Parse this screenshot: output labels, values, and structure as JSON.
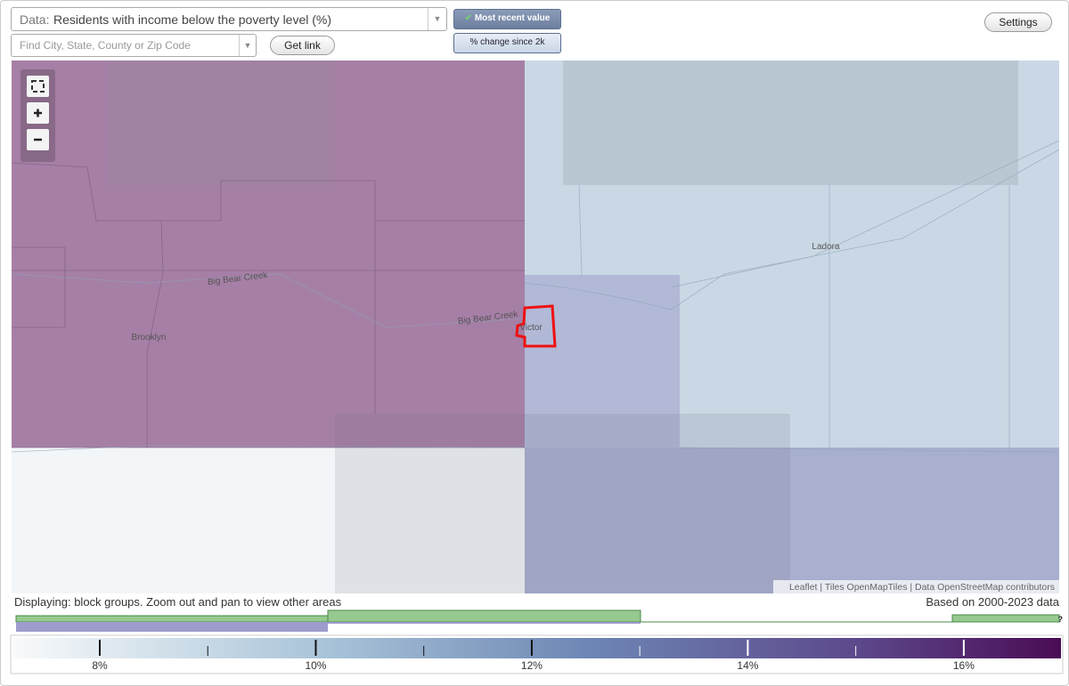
{
  "toolbar": {
    "data_label": "Data:",
    "data_value": "Residents with income below the poverty level (%)",
    "search_placeholder": "Find City, State, County or Zip Code",
    "get_link": "Get link",
    "most_recent": "Most recent value",
    "change": "% change since 2k",
    "settings": "Settings"
  },
  "map": {
    "labels": [
      "Brooklyn",
      "Big Bear Creek",
      "Big Bear Creek",
      "Victor",
      "Ladora"
    ],
    "attribution": "Leaflet | Tiles OpenMapTiles | Data OpenStreetMap contributors"
  },
  "status": {
    "displaying": "Displaying: block groups. Zoom out and pan to view other areas",
    "based_on": "Based on 2000-2023 data"
  },
  "legend": {
    "range": [
      7.2,
      16.9
    ],
    "ticks": [
      {
        "value": 8,
        "label": "8%"
      },
      {
        "value": 10,
        "label": "10%"
      },
      {
        "value": 12,
        "label": "12%"
      },
      {
        "value": 14,
        "label": "14%"
      },
      {
        "value": 16,
        "label": "16%"
      }
    ],
    "minor_ticks": [
      9,
      11,
      13,
      15
    ],
    "help": "?"
  }
}
